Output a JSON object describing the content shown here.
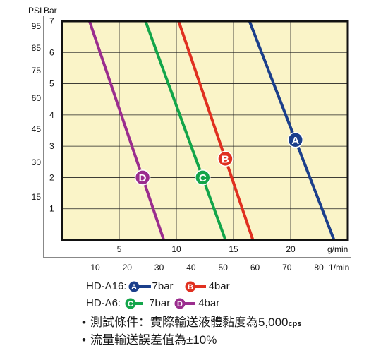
{
  "chart_data": {
    "type": "line",
    "title": "",
    "left_axis": {
      "psi_label": "PSI",
      "bar_label": "Bar",
      "psi_ticks": [
        "95",
        "85",
        "75",
        "60",
        "45",
        "30",
        "15"
      ],
      "bar_ticks": [
        {
          "label": "7",
          "value": 7
        },
        {
          "label": "6",
          "value": 6
        },
        {
          "label": "5",
          "value": 5
        },
        {
          "label": "4",
          "value": 4
        },
        {
          "label": "3",
          "value": 3
        },
        {
          "label": "2",
          "value": 2
        },
        {
          "label": "1",
          "value": 1
        }
      ],
      "ylim": [
        0,
        7
      ]
    },
    "bottom_axis": {
      "gpm_unit": "g/min",
      "lpm_unit": "1/min",
      "gpm_ticks": [
        {
          "label": "5",
          "value": 5
        },
        {
          "label": "10",
          "value": 10
        },
        {
          "label": "15",
          "value": 15
        },
        {
          "label": "20",
          "value": 20
        }
      ],
      "lpm_ticks": [
        "10",
        "20",
        "30",
        "40",
        "50",
        "60",
        "70",
        "80"
      ],
      "xlim": [
        0,
        25
      ]
    },
    "grid": true,
    "series": [
      {
        "name": "A",
        "color": "#1b3f8b",
        "top": [
          16.4,
          7
        ],
        "bottom": [
          23.8,
          0
        ],
        "marker_y": 3.2
      },
      {
        "name": "B",
        "color": "#e03020",
        "top": [
          10.2,
          7
        ],
        "bottom": [
          16.7,
          0
        ],
        "marker_y": 2.6
      },
      {
        "name": "C",
        "color": "#13a54a",
        "top": [
          7.3,
          7
        ],
        "bottom": [
          14.3,
          0
        ],
        "marker_y": 2.0
      },
      {
        "name": "D",
        "color": "#9b2d8e",
        "top": [
          2.4,
          7
        ],
        "bottom": [
          8.9,
          0
        ],
        "marker_y": 2.0
      }
    ]
  },
  "legend": {
    "row1_model": "HD-A16:",
    "row1_a_label": "7bar",
    "row1_b_label": "4bar",
    "row2_model": "HD-A6:",
    "row2_c_label": "7bar",
    "row2_d_label": "4bar"
  },
  "notes": {
    "bullet": "•",
    "line1": "測試條件：實際輸送液體黏度為5,000",
    "line1_suffix": "cps",
    "line2": "流量輸送誤差值為±10%"
  }
}
